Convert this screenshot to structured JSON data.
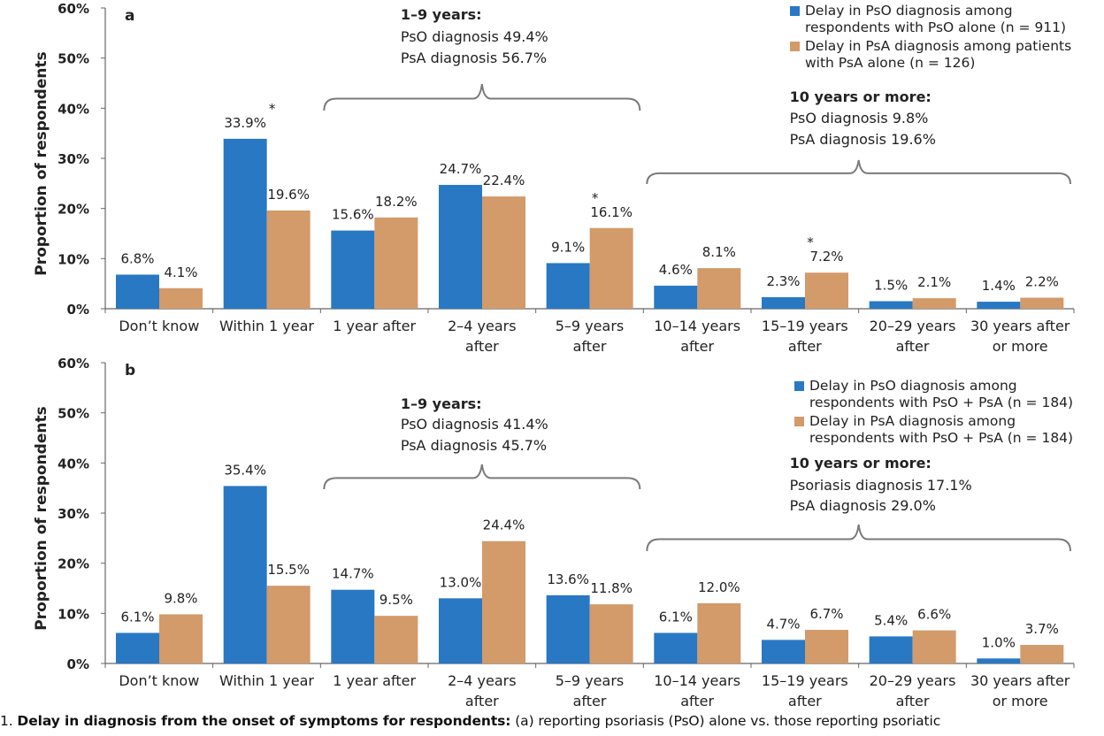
{
  "chart_data": [
    {
      "type": "bar",
      "panel_label": "a",
      "categories": [
        [
          "Don’t know"
        ],
        [
          "Within 1 year"
        ],
        [
          "1 year after"
        ],
        [
          "2–4 years",
          "after"
        ],
        [
          "5–9 years",
          "after"
        ],
        [
          "10–14 years",
          "after"
        ],
        [
          "15–19 years",
          "after"
        ],
        [
          "20–29 years",
          "after"
        ],
        [
          "30 years after",
          "or more"
        ]
      ],
      "series": [
        {
          "name": "Delay in PsO diagnosis among respondents with PsO alone (n = 911)",
          "legend_lines": [
            "Delay in PsO diagnosis among",
            "respondents with PsO alone (n = 911)"
          ],
          "color": "#2878c4",
          "values": [
            6.8,
            33.9,
            15.6,
            24.7,
            9.1,
            4.6,
            2.3,
            1.5,
            1.4
          ],
          "labels": [
            "6.8%",
            "33.9%",
            "15.6%",
            "24.7%",
            "9.1%",
            "4.6%",
            "2.3%",
            "1.5%",
            "1.4%"
          ]
        },
        {
          "name": "Delay in PsA diagnosis among patients with PsA alone (n = 126)",
          "legend_lines": [
            "Delay in PsA diagnosis among patients",
            "with PsA alone (n = 126)"
          ],
          "color": "#d39a6a",
          "values": [
            4.1,
            19.6,
            18.2,
            22.4,
            16.1,
            8.1,
            7.2,
            2.1,
            2.2
          ],
          "labels": [
            "4.1%",
            "19.6%",
            "18.2%",
            "22.4%",
            "16.1%",
            "8.1%",
            "7.2%",
            "2.1%",
            "2.2%"
          ]
        }
      ],
      "significance_marks": [
        "*",
        "*",
        "*"
      ],
      "significance_categories": [
        1,
        4,
        6
      ],
      "annotations": [
        {
          "lines": [
            "1–9 years:",
            "PsO diagnosis 49.4%",
            "PsA diagnosis 56.7%"
          ],
          "span": [
            2,
            4
          ]
        },
        {
          "lines": [
            "10 years or more:",
            "PsO diagnosis 9.8%",
            "PsA diagnosis 19.6%"
          ],
          "span": [
            5,
            8
          ]
        }
      ],
      "ylabel": "Proportion of respondents",
      "yticks": [
        "0%",
        "10%",
        "20%",
        "30%",
        "40%",
        "50%",
        "60%"
      ],
      "ylim": [
        0,
        60
      ],
      "grid": false,
      "legend_position": "top-right"
    },
    {
      "type": "bar",
      "panel_label": "b",
      "categories": [
        [
          "Don’t know"
        ],
        [
          "Within 1 year"
        ],
        [
          "1 year after"
        ],
        [
          "2–4 years",
          "after"
        ],
        [
          "5–9 years",
          "after"
        ],
        [
          "10–14 years",
          "after"
        ],
        [
          "15–19 years",
          "after"
        ],
        [
          "20–29 years",
          "after"
        ],
        [
          "30 years after",
          "or more"
        ]
      ],
      "series": [
        {
          "name": "Delay in PsO diagnosis among respondents with PsO + PsA (n = 184)",
          "legend_lines": [
            "Delay in PsO diagnosis among",
            "respondents with PsO + PsA (n = 184)"
          ],
          "color": "#2878c4",
          "values": [
            6.1,
            35.4,
            14.7,
            13.0,
            13.6,
            6.1,
            4.7,
            5.4,
            1.0
          ],
          "labels": [
            "6.1%",
            "35.4%",
            "14.7%",
            "13.0%",
            "13.6%",
            "6.1%",
            "4.7%",
            "5.4%",
            "1.0%"
          ]
        },
        {
          "name": "Delay in PsA diagnosis among respondents with PsO + PsA (n = 184)",
          "legend_lines": [
            "Delay in PsA diagnosis among",
            "respondents with PsO + PsA (n = 184)"
          ],
          "color": "#d39a6a",
          "values": [
            9.8,
            15.5,
            9.5,
            24.4,
            11.8,
            12.0,
            6.7,
            6.6,
            3.7
          ],
          "labels": [
            "9.8%",
            "15.5%",
            "9.5%",
            "24.4%",
            "11.8%",
            "12.0%",
            "6.7%",
            "6.6%",
            "3.7%"
          ]
        }
      ],
      "significance_marks": [],
      "significance_categories": [],
      "annotations": [
        {
          "lines": [
            "1–9 years:",
            "PsO diagnosis 41.4%",
            "PsA diagnosis 45.7%"
          ],
          "span": [
            2,
            4
          ]
        },
        {
          "lines": [
            "10 years or more:",
            "Psoriasis diagnosis 17.1%",
            "PsA diagnosis 29.0%"
          ],
          "span": [
            5,
            8
          ]
        }
      ],
      "ylabel": "Proportion of respondents",
      "yticks": [
        "0%",
        "10%",
        "20%",
        "30%",
        "40%",
        "50%",
        "60%"
      ],
      "ylim": [
        0,
        60
      ],
      "grid": false,
      "legend_position": "top-right"
    }
  ],
  "caption": {
    "prefix": "1. ",
    "bold": "Delay in diagnosis from the onset of symptoms for respondents:",
    "rest": " (a) reporting psoriasis (PsO) alone vs. those reporting psoriatic"
  }
}
